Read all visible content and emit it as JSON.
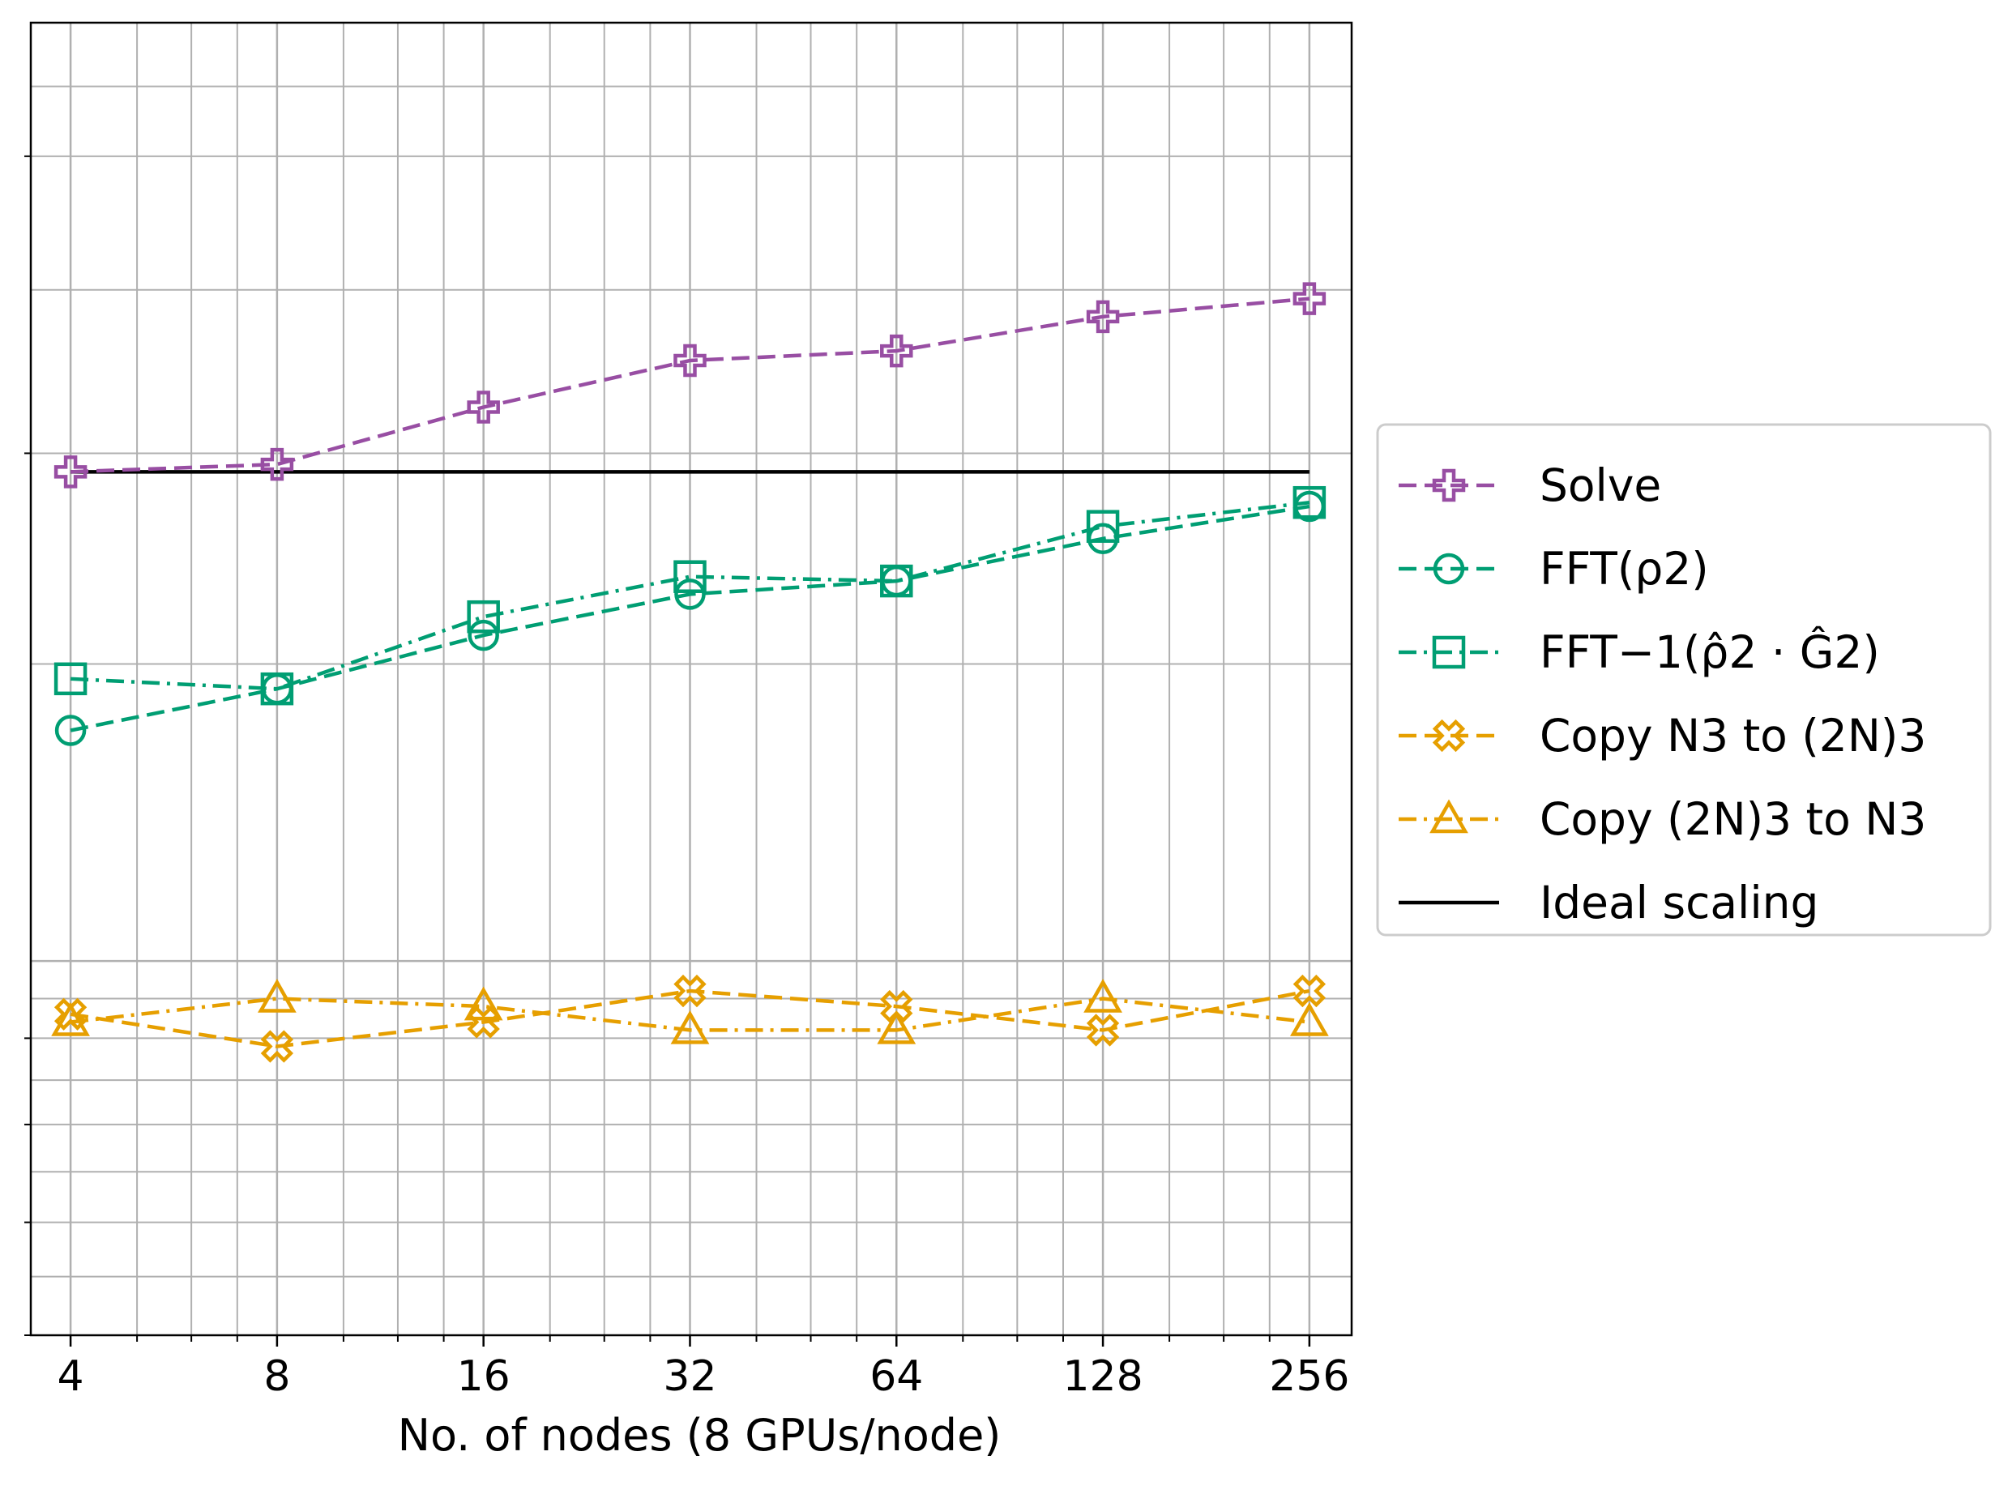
{
  "chart_data": {
    "type": "line",
    "xlabel": "No. of nodes (8 GPUs/node)",
    "ylabel": "",
    "x_scale": "log2",
    "y_scale": "log",
    "x": [
      4,
      8,
      16,
      32,
      64,
      128,
      256
    ],
    "x_tick_labels": [
      "4",
      "8",
      "16",
      "32",
      "64",
      "128",
      "256"
    ],
    "xlim": [
      3.5,
      295
    ],
    "ylim": [
      0.6,
      3.6
    ],
    "grid": true,
    "legend_position": "right",
    "series": [
      {
        "name": "Solve",
        "values": [
          1.95,
          1.97,
          2.13,
          2.27,
          2.3,
          2.41,
          2.47
        ],
        "color": "#984ea3",
        "linestyle": "dashed",
        "marker": "plus"
      },
      {
        "name": "FFT(ρ2)",
        "values": [
          1.37,
          1.45,
          1.56,
          1.65,
          1.68,
          1.78,
          1.86
        ],
        "color": "#009e73",
        "linestyle": "dashed",
        "marker": "circle"
      },
      {
        "name": "FFT−1(ρ̂2 · Ĝ2)",
        "values": [
          1.47,
          1.45,
          1.6,
          1.69,
          1.68,
          1.81,
          1.87
        ],
        "color": "#009e73",
        "linestyle": "dashdot",
        "marker": "square"
      },
      {
        "name": "Copy N3 to (2N)3",
        "values": [
          0.93,
          0.89,
          0.92,
          0.96,
          0.94,
          0.91,
          0.96
        ],
        "color": "#e69f00",
        "linestyle": "dashed",
        "marker": "x"
      },
      {
        "name": "Copy (2N)3 to N3",
        "values": [
          0.92,
          0.95,
          0.94,
          0.91,
          0.91,
          0.95,
          0.92
        ],
        "color": "#e69f00",
        "linestyle": "dashdot",
        "marker": "triangle"
      },
      {
        "name": "Ideal scaling",
        "values": [
          1.95,
          1.95,
          1.95,
          1.95,
          1.95,
          1.95,
          1.95
        ],
        "color": "#000000",
        "linestyle": "solid",
        "marker": "none"
      }
    ]
  }
}
